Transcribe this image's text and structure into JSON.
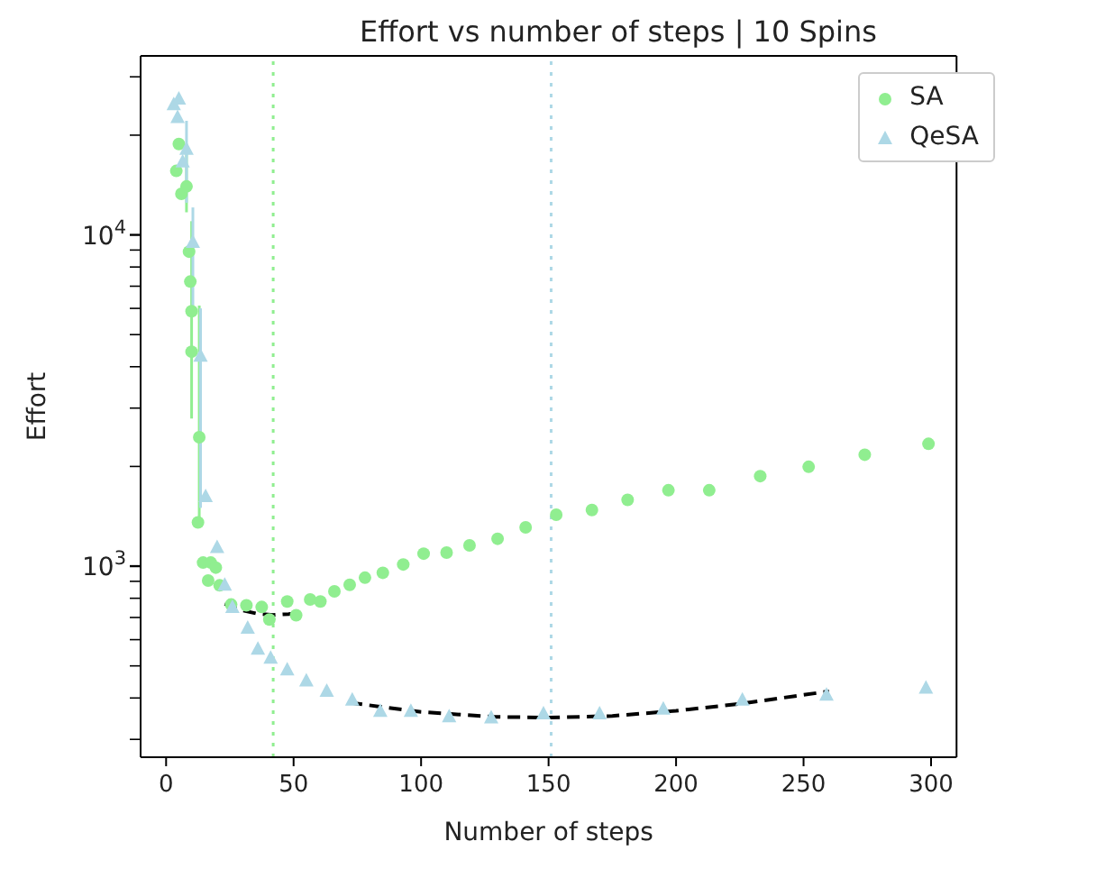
{
  "chart_data": {
    "type": "scatter",
    "title": "Effort vs number of steps | 10 Spins",
    "xlabel": "Number of steps",
    "ylabel": "Effort",
    "log": "y",
    "legend": "top right",
    "xlim": [
      -10,
      310
    ],
    "xticks": [
      0,
      50,
      100,
      150,
      200,
      250,
      300
    ],
    "ylim": [
      265,
      34700
    ],
    "yticks": [
      {
        "value": 300,
        "label": null
      },
      {
        "value": 400,
        "label": null
      },
      {
        "value": 500,
        "label": null
      },
      {
        "value": 600,
        "label": null
      },
      {
        "value": 700,
        "label": null
      },
      {
        "value": 800,
        "label": null
      },
      {
        "value": 900,
        "label": null
      },
      {
        "value": 1000,
        "label": "10$^{3}$"
      },
      {
        "value": 2000,
        "label": null
      },
      {
        "value": 3000,
        "label": null
      },
      {
        "value": 4000,
        "label": null
      },
      {
        "value": 5000,
        "label": null
      },
      {
        "value": 6000,
        "label": null
      },
      {
        "value": 7000,
        "label": null
      },
      {
        "value": 8000,
        "label": null
      },
      {
        "value": 9000,
        "label": null
      },
      {
        "value": 10000,
        "label": "10$^{4}$"
      },
      {
        "value": 20000,
        "label": null
      },
      {
        "value": 30000,
        "label": null
      }
    ],
    "ref_lines": [
      {
        "axis": "x",
        "value": 42,
        "color": "#90ee90",
        "line_style": "dotted"
      },
      {
        "axis": "x",
        "value": 151,
        "color": "#add8e6",
        "line_style": "dotted"
      }
    ],
    "series": [
      {
        "name": "SA",
        "color": "#90ee90",
        "marker": "circle",
        "x": [
          4,
          5,
          6,
          8,
          9,
          9.5,
          10,
          10,
          13,
          12.5,
          14.5,
          17.5,
          16.5,
          19.5,
          21,
          25.5,
          31.5,
          37.5,
          40.5,
          47.5,
          51,
          56.5,
          60.5,
          66,
          72,
          78,
          85,
          93,
          101,
          110,
          119,
          130,
          141,
          153,
          167,
          181,
          197,
          213,
          233,
          252,
          274,
          299
        ],
        "values": [
          15600,
          18800,
          13300,
          14000,
          8900,
          7230,
          5880,
          4440,
          2450,
          1355,
          1025,
          1025,
          905,
          990,
          875,
          766,
          762,
          753,
          690,
          782,
          711,
          793,
          782,
          839,
          878,
          923,
          955,
          1012,
          1091,
          1099,
          1155,
          1210,
          1310,
          1430,
          1477,
          1586,
          1695,
          1695,
          1870,
          1995,
          2170,
          2340
        ],
        "errors": [
          null,
          null,
          null,
          [
            11700,
            18800
          ],
          null,
          null,
          null,
          [
            2790,
            11000
          ],
          [
            1370,
            6120
          ],
          null,
          null,
          null,
          null,
          null,
          null,
          null,
          null,
          null,
          null,
          null,
          null,
          null,
          null,
          null,
          null,
          null,
          null,
          null,
          null,
          null,
          null,
          null,
          null,
          null,
          null,
          null,
          null,
          null,
          null,
          null,
          null,
          null
        ]
      },
      {
        "name": "QeSA",
        "color": "#add8e6",
        "marker": "triangle",
        "x": [
          3,
          4.5,
          5,
          6.5,
          8,
          10.5,
          13.5,
          15.5,
          20,
          23,
          26,
          32,
          36,
          41,
          47.5,
          55,
          63,
          73,
          84,
          96,
          111,
          127.5,
          148,
          170,
          195,
          226,
          259,
          298
        ],
        "values": [
          24700,
          22600,
          25700,
          16600,
          18100,
          9480,
          4300,
          1620,
          1137,
          875,
          750,
          649,
          561,
          527,
          486,
          450,
          419,
          394,
          364,
          364,
          351,
          348,
          358,
          358,
          370,
          394,
          408,
          428
        ],
        "errors": [
          null,
          null,
          null,
          null,
          [
            12500,
            22100
          ],
          [
            6120,
            12100
          ],
          [
            1500,
            6000
          ],
          null,
          null,
          null,
          null,
          null,
          null,
          null,
          null,
          null,
          null,
          null,
          null,
          null,
          null,
          null,
          null,
          null,
          null,
          null,
          null,
          null
        ]
      },
      {
        "type": "line",
        "color": "#000000",
        "marker": "none",
        "line_style": "dashed",
        "x": [
          23,
          30,
          36,
          42,
          48,
          52
        ],
        "values": [
          770,
          735,
          718,
          712,
          717,
          722
        ]
      },
      {
        "type": "line",
        "color": "#000000",
        "marker": "none",
        "line_style": "dashed",
        "x": [
          72,
          100,
          128,
          150,
          175,
          200,
          225,
          260
        ],
        "values": [
          387,
          363,
          351,
          349,
          353,
          366,
          384,
          419
        ]
      }
    ]
  }
}
